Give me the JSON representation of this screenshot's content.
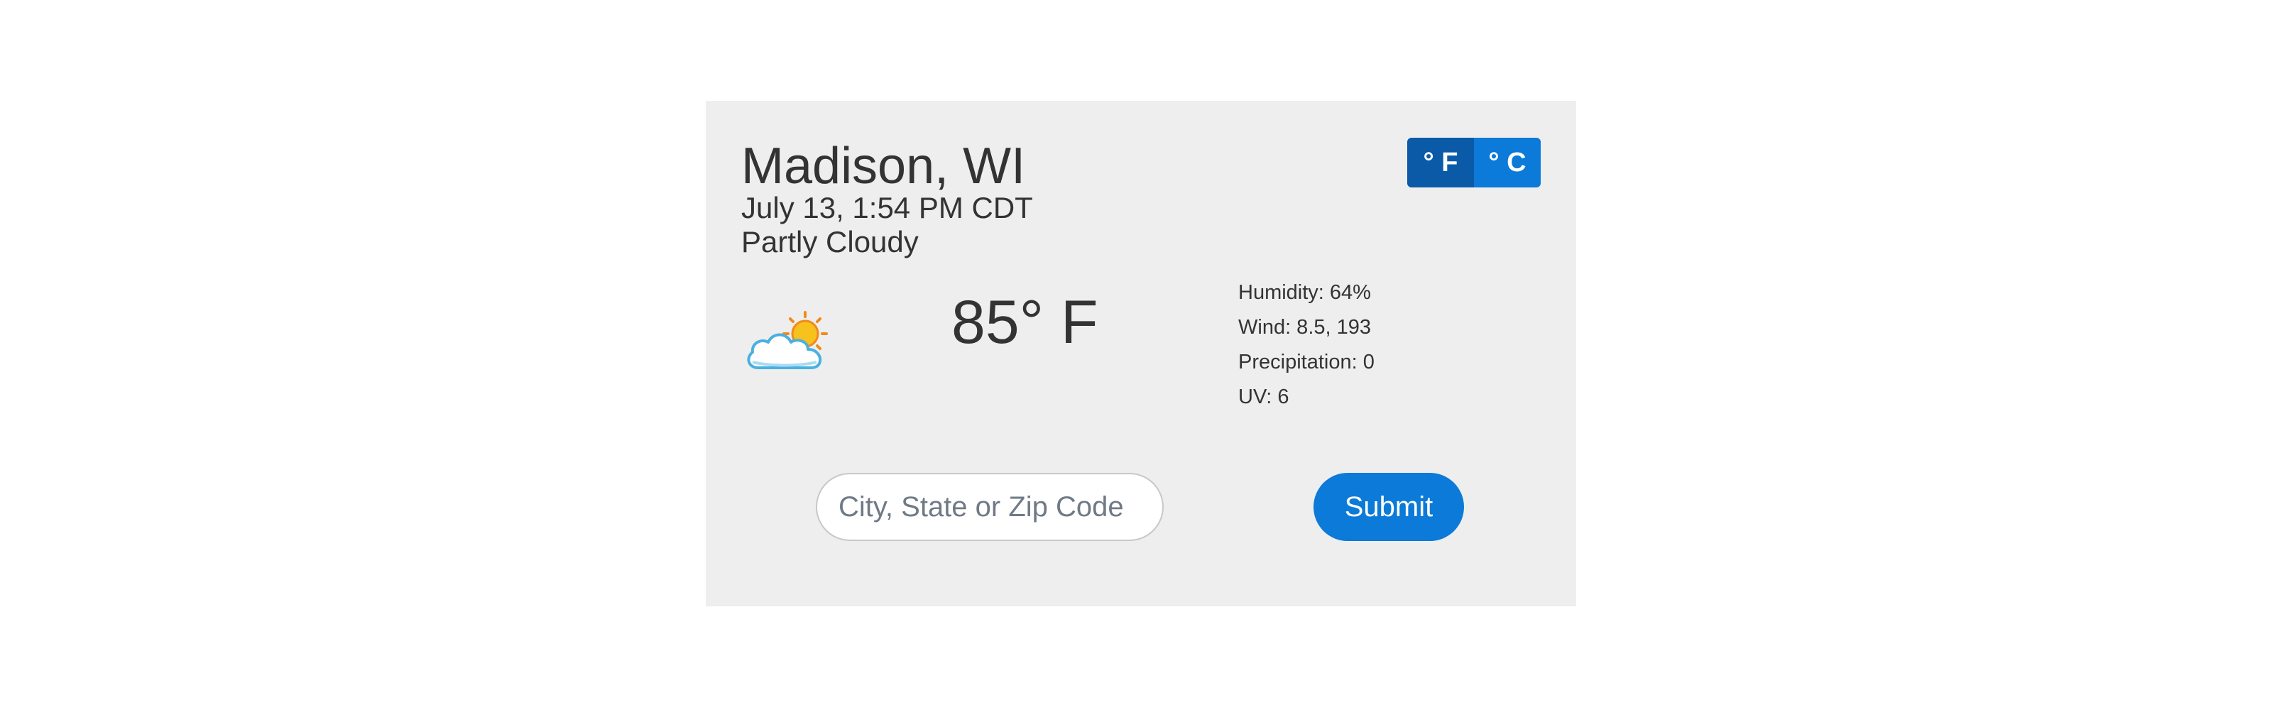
{
  "location": {
    "city": "Madison, WI",
    "datetime": "July 13, 1:54 PM CDT",
    "condition": "Partly Cloudy"
  },
  "units": {
    "fahrenheit_label": "° F",
    "celsius_label": "° C",
    "active": "fahrenheit"
  },
  "current": {
    "temperature": "85° F",
    "icon": "partly-cloudy-icon"
  },
  "details": {
    "humidity": "Humidity: 64%",
    "wind": "Wind: 8.5, 193",
    "precipitation": "Precipitation: 0",
    "uv": "UV: 6"
  },
  "search": {
    "placeholder": "City, State or Zip Code",
    "value": "",
    "submit_label": "Submit"
  },
  "colors": {
    "accent": "#0b7ad8",
    "accent_active": "#0a5aa8",
    "card_background": "#eeeeee",
    "text": "#333333"
  }
}
